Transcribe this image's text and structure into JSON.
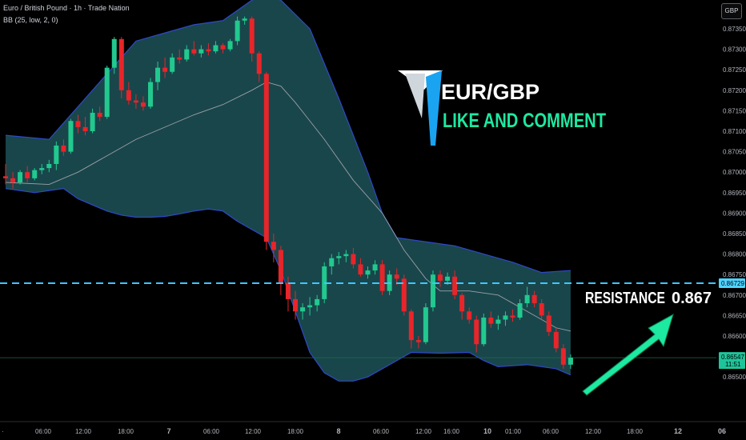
{
  "header": {
    "symbol_line": "Euro / British Pound · 1h · Trade Nation",
    "indicator_line": "BB (25, low, 2, 0)",
    "currency_button": "GBP"
  },
  "overlay": {
    "pair_title": "EUR/GBP",
    "cta_text": "LIKE AND COMMENT",
    "resistance_label": "RESISTANCE",
    "resistance_value": "0.867"
  },
  "colors": {
    "background": "#000000",
    "up_candle": "#22c98f",
    "down_candle": "#e8252a",
    "band_fill": "#1a4a4f",
    "band_line": "#2f49c8",
    "basis_line": "#9aa0a6",
    "resistance_line": "#3fc7ff",
    "arrow": "#1de9a0",
    "title_white": "#ffffff",
    "cta_green": "#1de9a0",
    "current_price_bg": "#1fc59a",
    "resistance_tag_bg": "#4fd3ff"
  },
  "chart_data": {
    "type": "candlestick",
    "y_axis_ticks": [
      "0.87350",
      "0.87300",
      "0.87250",
      "0.87200",
      "0.87150",
      "0.87100",
      "0.87050",
      "0.87000",
      "0.86950",
      "0.86900",
      "0.86850",
      "0.86800",
      "0.86750",
      "0.86700",
      "0.86650",
      "0.86600",
      "0.86500"
    ],
    "x_axis_ticks": [
      "06:00",
      "12:00",
      "18:00",
      "7",
      "06:00",
      "12:00",
      "18:00",
      "8",
      "06:00",
      "12:00",
      "16:00",
      "10",
      "01:00",
      "06:00",
      "12:00",
      "18:00",
      "12",
      "06"
    ],
    "ylim": [
      0.8649,
      0.8741
    ],
    "resistance_level": 0.86729,
    "resistance_tag": "0.86729",
    "current_price": "0.86547",
    "countdown": "11:51",
    "candles": [
      {
        "o": 0.8699,
        "h": 0.8702,
        "l": 0.8697,
        "c": 0.86985
      },
      {
        "o": 0.86985,
        "h": 0.87,
        "l": 0.8696,
        "c": 0.86975
      },
      {
        "o": 0.86975,
        "h": 0.87005,
        "l": 0.8697,
        "c": 0.87
      },
      {
        "o": 0.87,
        "h": 0.87015,
        "l": 0.86975,
        "c": 0.86985
      },
      {
        "o": 0.86985,
        "h": 0.8701,
        "l": 0.8698,
        "c": 0.87005
      },
      {
        "o": 0.87005,
        "h": 0.8702,
        "l": 0.86995,
        "c": 0.8701
      },
      {
        "o": 0.8701,
        "h": 0.8703,
        "l": 0.87,
        "c": 0.8702
      },
      {
        "o": 0.8702,
        "h": 0.87075,
        "l": 0.87005,
        "c": 0.87065
      },
      {
        "o": 0.87065,
        "h": 0.8708,
        "l": 0.8704,
        "c": 0.8705
      },
      {
        "o": 0.8705,
        "h": 0.8713,
        "l": 0.87045,
        "c": 0.87125
      },
      {
        "o": 0.87125,
        "h": 0.8714,
        "l": 0.87095,
        "c": 0.8711
      },
      {
        "o": 0.8711,
        "h": 0.87135,
        "l": 0.8709,
        "c": 0.871
      },
      {
        "o": 0.871,
        "h": 0.87155,
        "l": 0.87095,
        "c": 0.87145
      },
      {
        "o": 0.87145,
        "h": 0.8716,
        "l": 0.87125,
        "c": 0.87135
      },
      {
        "o": 0.87135,
        "h": 0.8726,
        "l": 0.8713,
        "c": 0.87255
      },
      {
        "o": 0.87255,
        "h": 0.8733,
        "l": 0.8724,
        "c": 0.87325
      },
      {
        "o": 0.87325,
        "h": 0.8733,
        "l": 0.8718,
        "c": 0.872
      },
      {
        "o": 0.872,
        "h": 0.8722,
        "l": 0.87165,
        "c": 0.87175
      },
      {
        "o": 0.87175,
        "h": 0.8719,
        "l": 0.87155,
        "c": 0.8717
      },
      {
        "o": 0.8717,
        "h": 0.87185,
        "l": 0.8715,
        "c": 0.8716
      },
      {
        "o": 0.8716,
        "h": 0.8723,
        "l": 0.87155,
        "c": 0.8722
      },
      {
        "o": 0.8722,
        "h": 0.8727,
        "l": 0.872,
        "c": 0.87255
      },
      {
        "o": 0.87255,
        "h": 0.8728,
        "l": 0.8723,
        "c": 0.87245
      },
      {
        "o": 0.87245,
        "h": 0.8729,
        "l": 0.8724,
        "c": 0.8728
      },
      {
        "o": 0.8728,
        "h": 0.873,
        "l": 0.87265,
        "c": 0.87275
      },
      {
        "o": 0.87275,
        "h": 0.8731,
        "l": 0.8727,
        "c": 0.873
      },
      {
        "o": 0.873,
        "h": 0.8732,
        "l": 0.87285,
        "c": 0.8729
      },
      {
        "o": 0.8729,
        "h": 0.8731,
        "l": 0.8728,
        "c": 0.873
      },
      {
        "o": 0.873,
        "h": 0.87315,
        "l": 0.87285,
        "c": 0.87295
      },
      {
        "o": 0.87295,
        "h": 0.8732,
        "l": 0.8729,
        "c": 0.8731
      },
      {
        "o": 0.8731,
        "h": 0.87315,
        "l": 0.8729,
        "c": 0.873
      },
      {
        "o": 0.873,
        "h": 0.87325,
        "l": 0.87295,
        "c": 0.8732
      },
      {
        "o": 0.8732,
        "h": 0.8738,
        "l": 0.8731,
        "c": 0.8737
      },
      {
        "o": 0.8737,
        "h": 0.8738,
        "l": 0.8736,
        "c": 0.87375
      },
      {
        "o": 0.87375,
        "h": 0.8738,
        "l": 0.8727,
        "c": 0.8729
      },
      {
        "o": 0.8729,
        "h": 0.87295,
        "l": 0.8722,
        "c": 0.8724
      },
      {
        "o": 0.8724,
        "h": 0.87245,
        "l": 0.8681,
        "c": 0.8683
      },
      {
        "o": 0.8683,
        "h": 0.8685,
        "l": 0.8678,
        "c": 0.8681
      },
      {
        "o": 0.8681,
        "h": 0.8682,
        "l": 0.867,
        "c": 0.8673
      },
      {
        "o": 0.8673,
        "h": 0.86745,
        "l": 0.8666,
        "c": 0.8669
      },
      {
        "o": 0.8669,
        "h": 0.8671,
        "l": 0.8664,
        "c": 0.8666
      },
      {
        "o": 0.8666,
        "h": 0.8668,
        "l": 0.8664,
        "c": 0.8667
      },
      {
        "o": 0.8667,
        "h": 0.86695,
        "l": 0.8665,
        "c": 0.86675
      },
      {
        "o": 0.86675,
        "h": 0.867,
        "l": 0.8666,
        "c": 0.8669
      },
      {
        "o": 0.8669,
        "h": 0.8678,
        "l": 0.8668,
        "c": 0.8677
      },
      {
        "o": 0.8677,
        "h": 0.868,
        "l": 0.8675,
        "c": 0.8679
      },
      {
        "o": 0.8679,
        "h": 0.86805,
        "l": 0.86775,
        "c": 0.86795
      },
      {
        "o": 0.86795,
        "h": 0.8681,
        "l": 0.8678,
        "c": 0.868
      },
      {
        "o": 0.868,
        "h": 0.86815,
        "l": 0.86765,
        "c": 0.86775
      },
      {
        "o": 0.86775,
        "h": 0.8679,
        "l": 0.86745,
        "c": 0.8675
      },
      {
        "o": 0.8675,
        "h": 0.8677,
        "l": 0.8674,
        "c": 0.8676
      },
      {
        "o": 0.8676,
        "h": 0.86785,
        "l": 0.8675,
        "c": 0.86775
      },
      {
        "o": 0.86775,
        "h": 0.86785,
        "l": 0.867,
        "c": 0.8671
      },
      {
        "o": 0.8671,
        "h": 0.8676,
        "l": 0.867,
        "c": 0.8675
      },
      {
        "o": 0.8675,
        "h": 0.86765,
        "l": 0.86725,
        "c": 0.8674
      },
      {
        "o": 0.8674,
        "h": 0.8675,
        "l": 0.8665,
        "c": 0.8666
      },
      {
        "o": 0.8666,
        "h": 0.86665,
        "l": 0.8657,
        "c": 0.8659
      },
      {
        "o": 0.8659,
        "h": 0.866,
        "l": 0.8657,
        "c": 0.86585
      },
      {
        "o": 0.86585,
        "h": 0.8668,
        "l": 0.8658,
        "c": 0.8667
      },
      {
        "o": 0.8667,
        "h": 0.8676,
        "l": 0.8666,
        "c": 0.8675
      },
      {
        "o": 0.8675,
        "h": 0.8676,
        "l": 0.8672,
        "c": 0.86735
      },
      {
        "o": 0.86735,
        "h": 0.86755,
        "l": 0.86725,
        "c": 0.86745
      },
      {
        "o": 0.86745,
        "h": 0.8676,
        "l": 0.8669,
        "c": 0.867
      },
      {
        "o": 0.867,
        "h": 0.86705,
        "l": 0.8664,
        "c": 0.8666
      },
      {
        "o": 0.8666,
        "h": 0.8667,
        "l": 0.8663,
        "c": 0.8664
      },
      {
        "o": 0.8664,
        "h": 0.8665,
        "l": 0.8656,
        "c": 0.8658
      },
      {
        "o": 0.8658,
        "h": 0.86655,
        "l": 0.86575,
        "c": 0.86645
      },
      {
        "o": 0.86645,
        "h": 0.8666,
        "l": 0.8662,
        "c": 0.8663
      },
      {
        "o": 0.8663,
        "h": 0.8665,
        "l": 0.86615,
        "c": 0.8664
      },
      {
        "o": 0.8664,
        "h": 0.8666,
        "l": 0.86625,
        "c": 0.8665
      },
      {
        "o": 0.8665,
        "h": 0.86665,
        "l": 0.86635,
        "c": 0.86645
      },
      {
        "o": 0.86645,
        "h": 0.8669,
        "l": 0.8664,
        "c": 0.8668
      },
      {
        "o": 0.8668,
        "h": 0.8672,
        "l": 0.8667,
        "c": 0.867
      },
      {
        "o": 0.867,
        "h": 0.8671,
        "l": 0.8667,
        "c": 0.8668
      },
      {
        "o": 0.8668,
        "h": 0.8669,
        "l": 0.8664,
        "c": 0.8665
      },
      {
        "o": 0.8665,
        "h": 0.8666,
        "l": 0.866,
        "c": 0.8661
      },
      {
        "o": 0.8661,
        "h": 0.8662,
        "l": 0.8656,
        "c": 0.8657
      },
      {
        "o": 0.8657,
        "h": 0.8658,
        "l": 0.8652,
        "c": 0.8653
      },
      {
        "o": 0.8653,
        "h": 0.86555,
        "l": 0.8652,
        "c": 0.86547
      }
    ],
    "bb_upper": [
      [
        0,
        0.8709
      ],
      [
        6,
        0.8708
      ],
      [
        10,
        0.8716
      ],
      [
        14,
        0.8724
      ],
      [
        18,
        0.8732
      ],
      [
        22,
        0.8734
      ],
      [
        26,
        0.8736
      ],
      [
        30,
        0.8737
      ],
      [
        32,
        0.87395
      ],
      [
        34,
        0.8742
      ],
      [
        36,
        0.8743
      ],
      [
        38,
        0.8742
      ],
      [
        42,
        0.8735
      ],
      [
        46,
        0.8718
      ],
      [
        50,
        0.87
      ],
      [
        52,
        0.869
      ],
      [
        54,
        0.8684
      ],
      [
        56,
        0.86835
      ],
      [
        58,
        0.8683
      ],
      [
        62,
        0.8682
      ],
      [
        66,
        0.868
      ],
      [
        70,
        0.8678
      ],
      [
        74,
        0.86755
      ],
      [
        78,
        0.8676
      ]
    ],
    "bb_lower": [
      [
        0,
        0.8696
      ],
      [
        4,
        0.8695
      ],
      [
        8,
        0.8696
      ],
      [
        10,
        0.86935
      ],
      [
        12,
        0.8692
      ],
      [
        14,
        0.86905
      ],
      [
        16,
        0.86895
      ],
      [
        18,
        0.8689
      ],
      [
        20,
        0.8689
      ],
      [
        22,
        0.86892
      ],
      [
        24,
        0.86898
      ],
      [
        26,
        0.86905
      ],
      [
        28,
        0.8691
      ],
      [
        30,
        0.86905
      ],
      [
        32,
        0.8688
      ],
      [
        34,
        0.8686
      ],
      [
        36,
        0.8684
      ],
      [
        38,
        0.8676
      ],
      [
        40,
        0.8666
      ],
      [
        42,
        0.8656
      ],
      [
        44,
        0.8651
      ],
      [
        46,
        0.8649
      ],
      [
        48,
        0.8649
      ],
      [
        50,
        0.865
      ],
      [
        52,
        0.8652
      ],
      [
        54,
        0.8654
      ],
      [
        56,
        0.8656
      ],
      [
        60,
        0.86558
      ],
      [
        64,
        0.8656
      ],
      [
        66,
        0.8654
      ],
      [
        68,
        0.86525
      ],
      [
        72,
        0.8653
      ],
      [
        76,
        0.8652
      ],
      [
        78,
        0.86505
      ]
    ],
    "bb_basis": [
      [
        0,
        0.86975
      ],
      [
        6,
        0.8697
      ],
      [
        10,
        0.87
      ],
      [
        14,
        0.8704
      ],
      [
        18,
        0.8708
      ],
      [
        22,
        0.8711
      ],
      [
        26,
        0.8714
      ],
      [
        30,
        0.87165
      ],
      [
        34,
        0.872
      ],
      [
        36,
        0.8722
      ],
      [
        38,
        0.8721
      ],
      [
        40,
        0.8717
      ],
      [
        44,
        0.8708
      ],
      [
        48,
        0.8698
      ],
      [
        52,
        0.869
      ],
      [
        55,
        0.8681
      ],
      [
        58,
        0.8674
      ],
      [
        60,
        0.8671
      ],
      [
        64,
        0.8671
      ],
      [
        68,
        0.867
      ],
      [
        72,
        0.8666
      ],
      [
        76,
        0.8662
      ],
      [
        78,
        0.86612
      ]
    ]
  }
}
